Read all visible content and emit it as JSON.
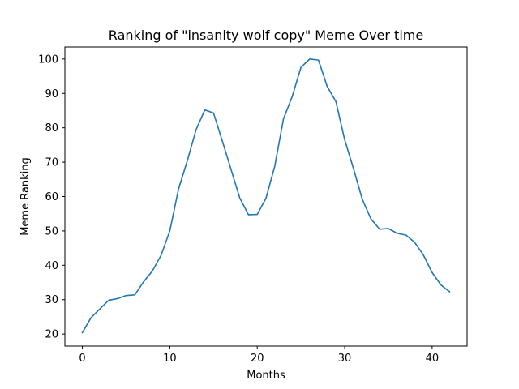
{
  "chart_data": {
    "type": "line",
    "title": "Ranking of \"insanity wolf copy\" Meme Over time",
    "xlabel": "Months",
    "ylabel": "Meme Ranking",
    "xlim": [
      -2,
      44
    ],
    "ylim": [
      16.5,
      103.5
    ],
    "xticks": [
      0,
      10,
      20,
      30,
      40
    ],
    "yticks": [
      20,
      30,
      40,
      50,
      60,
      70,
      80,
      90,
      100
    ],
    "grid": false,
    "series": [
      {
        "color": "#1f77b4",
        "x": [
          0,
          1,
          2,
          3,
          4,
          5,
          6,
          7,
          8,
          9,
          10,
          11,
          12,
          13,
          14,
          15,
          16,
          17,
          18,
          19,
          20,
          21,
          22,
          23,
          24,
          25,
          26,
          27,
          28,
          29,
          30,
          31,
          32,
          33,
          34,
          35,
          36,
          37,
          38,
          39,
          40,
          41,
          42
        ],
        "y": [
          20.4,
          24.8,
          27.3,
          29.8,
          30.3,
          31.2,
          31.4,
          35.2,
          38.3,
          42.9,
          50.0,
          62.2,
          70.4,
          79.4,
          85.2,
          84.3,
          76.2,
          67.9,
          59.6,
          54.7,
          54.8,
          59.5,
          68.8,
          82.6,
          89.1,
          97.6,
          100.0,
          99.7,
          92.0,
          87.6,
          76.5,
          68.2,
          59.3,
          53.5,
          50.5,
          50.7,
          49.3,
          48.8,
          46.7,
          43.0,
          37.9,
          34.3,
          32.3
        ]
      }
    ]
  }
}
